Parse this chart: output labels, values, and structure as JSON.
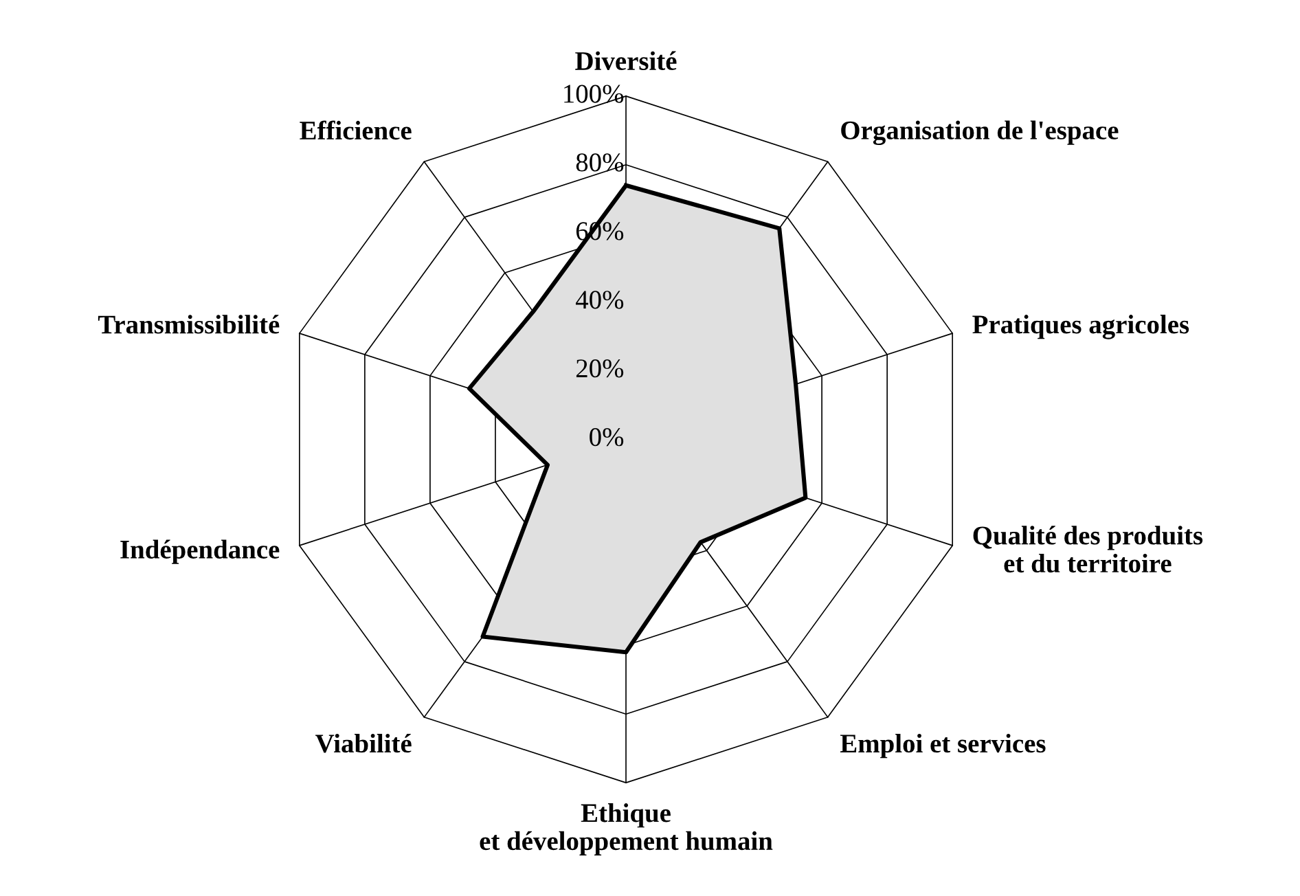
{
  "chart_data": {
    "type": "radar",
    "categories": [
      "Diversité",
      "Organisation de l'espace",
      "Pratiques agricoles",
      "Qualité des produits\net du territoire",
      "Emploi et services",
      "Ethique\net développement humain",
      "Viabilité",
      "Indépendance",
      "Transmissibilité",
      "Efficience"
    ],
    "series": [
      {
        "color": "#000000",
        "values": [
          74,
          76,
          52,
          55,
          37,
          62,
          71,
          24,
          48,
          46
        ]
      }
    ],
    "ylim": [
      0,
      100
    ],
    "yticks": [
      {
        "value": 0,
        "label": "0%"
      },
      {
        "value": 20,
        "label": "20%"
      },
      {
        "value": 40,
        "label": "40%"
      },
      {
        "value": 60,
        "label": "60%"
      },
      {
        "value": 80,
        "label": "80%"
      },
      {
        "value": 100,
        "label": "100%"
      }
    ],
    "grid": true
  }
}
